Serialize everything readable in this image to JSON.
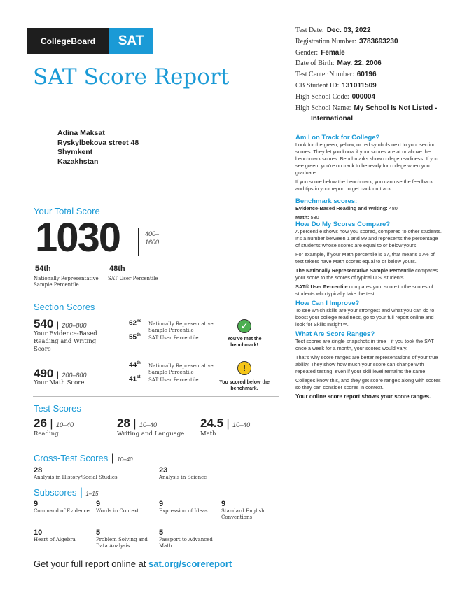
{
  "header": {
    "brand": "CollegeBoard",
    "sat_logo": "SAT",
    "title": "SAT Score Report"
  },
  "student_info": [
    {
      "label": "Test Date:",
      "value": "Dec. 03, 2022"
    },
    {
      "label": "Registration Number:",
      "value": "3783693230"
    },
    {
      "label": "Gender:",
      "value": "Female"
    },
    {
      "label": "Date of Birth:",
      "value": "May. 22, 2006"
    },
    {
      "label": "Test Center Number:",
      "value": "60196"
    },
    {
      "label": "CB Student ID:",
      "value": "131011509"
    },
    {
      "label": "High School Code:",
      "value": "000004"
    },
    {
      "label": "High School Name:",
      "value": "My School Is Not Listed - International"
    }
  ],
  "address": {
    "name": "Adina Maksat",
    "street": "Ryskylbekova street 48",
    "city": "Shymkent",
    "country": "Kazakhstan"
  },
  "total": {
    "heading": "Your Total Score",
    "score": "1030",
    "range": "400–1600",
    "nrs": "54th",
    "nrs_label": "Nationally Representative Sample Percentile",
    "user": "48th",
    "user_label": "SAT User Percentile"
  },
  "section": {
    "heading": "Section Scores",
    "ebrw": {
      "score": "540",
      "range": "200–800",
      "label": "Your Evidence-Based Reading and Writing Score",
      "nrs_num": "62",
      "nrs_suf": "nd",
      "nrs_label": "Nationally Representative Sample Percentile",
      "user_num": "55",
      "user_suf": "th",
      "user_label": "SAT User Percentile",
      "benchmark": "You've met the benchmark!",
      "status": "met",
      "color": "#4caf50"
    },
    "math": {
      "score": "490",
      "range": "200–800",
      "label": "Your Math Score",
      "nrs_num": "44",
      "nrs_suf": "th",
      "nrs_label": "Nationally Representative Sample Percentile",
      "user_num": "41",
      "user_suf": "st",
      "user_label": "SAT User Percentile",
      "benchmark": "You scored below the benchmark.",
      "status": "below",
      "color": "#f5c518"
    }
  },
  "tests": {
    "heading": "Test Scores",
    "range": "10–40",
    "items": [
      {
        "score": "26",
        "label": "Reading"
      },
      {
        "score": "28",
        "label": "Writing and Language"
      },
      {
        "score": "24.5",
        "label": "Math"
      }
    ]
  },
  "cross": {
    "heading": "Cross-Test Scores",
    "range": "10–40",
    "items": [
      {
        "score": "28",
        "label": "Analysis in History/Social Studies"
      },
      {
        "score": "23",
        "label": "Analysis in Science"
      }
    ]
  },
  "subscores": {
    "heading": "Subscores",
    "range": "1–15",
    "items": [
      {
        "score": "9",
        "label": "Command of Evidence"
      },
      {
        "score": "9",
        "label": "Words in Context"
      },
      {
        "score": "9",
        "label": "Expression of Ideas"
      },
      {
        "score": "9",
        "label": "Standard English Conventions"
      },
      {
        "score": "10",
        "label": "Heart of Algebra"
      },
      {
        "score": "5",
        "label": "Problem Solving and Data Analysis"
      },
      {
        "score": "5",
        "label": "Passport to Advanced Math"
      }
    ]
  },
  "footer": {
    "text": "Get your full report online at ",
    "link": "sat.org/scorereport"
  },
  "sidebar": {
    "track_h": "Am I on Track for College?",
    "track_p1": "Look for the green, yellow, or red symbols next to your section scores. They let you know if your scores are at or above the benchmark scores. Benchmarks show college readiness. If you see green, you're on track to be ready for college when you graduate.",
    "track_p2": "If you score below the benchmark, you can use the feedback and tips in your report to get back on track.",
    "bench_h": "Benchmark scores:",
    "bench_ebrw_l": "Evidence-Based Reading and Writing:",
    "bench_ebrw": "480",
    "bench_math_l": "Math:",
    "bench_math": "530",
    "compare_h": "How Do My Scores Compare?",
    "compare_p1": "A percentile shows how you scored, compared to other students. It's a number between 1 and 99 and represents the percentage of students whose scores are equal to or below yours.",
    "compare_p2": "For example, if your Math percentile is 57, that means 57% of test takers have Math scores equal to or below yours.",
    "compare_p3b": "The Nationally Representative Sample Percentile",
    "compare_p3": " compares your score to the scores of typical U.S. students.",
    "compare_p4b": "SAT® User Percentile",
    "compare_p4": " compares your score to the scores of students who typically take the test.",
    "improve_h": "How Can I Improve?",
    "improve_p": "To see which skills are your strongest and what you can do to boost your college readiness, go to your full report online and look for Skills Insight™.",
    "ranges_h": "What Are Score Ranges?",
    "ranges_p1": "Test scores are single snapshots in time—if you took the SAT once a week for a month, your scores would vary.",
    "ranges_p2": "That's why score ranges are better representations of your true ability. They show how much your score can change with repeated testing, even if your skill level remains the same.",
    "ranges_p3": "Colleges know this, and they get score ranges along with scores so they can consider scores in context.",
    "ranges_p4": "Your online score report shows your score ranges."
  }
}
